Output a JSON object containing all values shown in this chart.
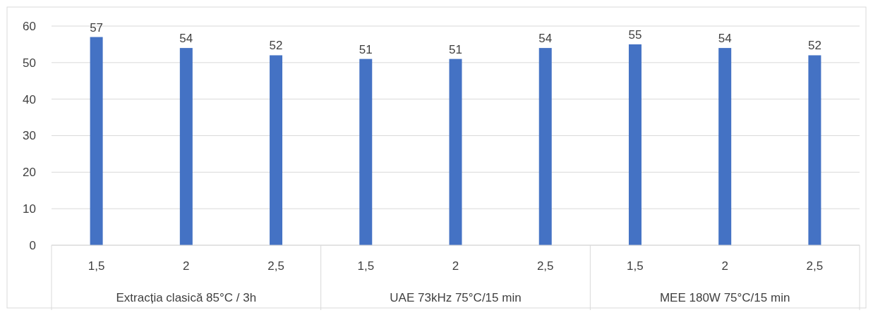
{
  "chart_data": {
    "type": "bar",
    "categories": [
      "1,5",
      "2",
      "2,5",
      "1,5",
      "2",
      "2,5",
      "1,5",
      "2",
      "2,5"
    ],
    "values": [
      57,
      54,
      52,
      51,
      51,
      54,
      55,
      54,
      52
    ],
    "color": "#4472c4",
    "data_labels": true,
    "ylim": [
      0,
      60
    ],
    "yticks": [
      0,
      10,
      20,
      30,
      40,
      50,
      60
    ],
    "grid": "y",
    "annotations": [
      "Extracția clasică 85°C / 3h",
      "UAE 73kHz 75°C/15 min",
      "MEE 180W 75°C/15 min"
    ]
  }
}
